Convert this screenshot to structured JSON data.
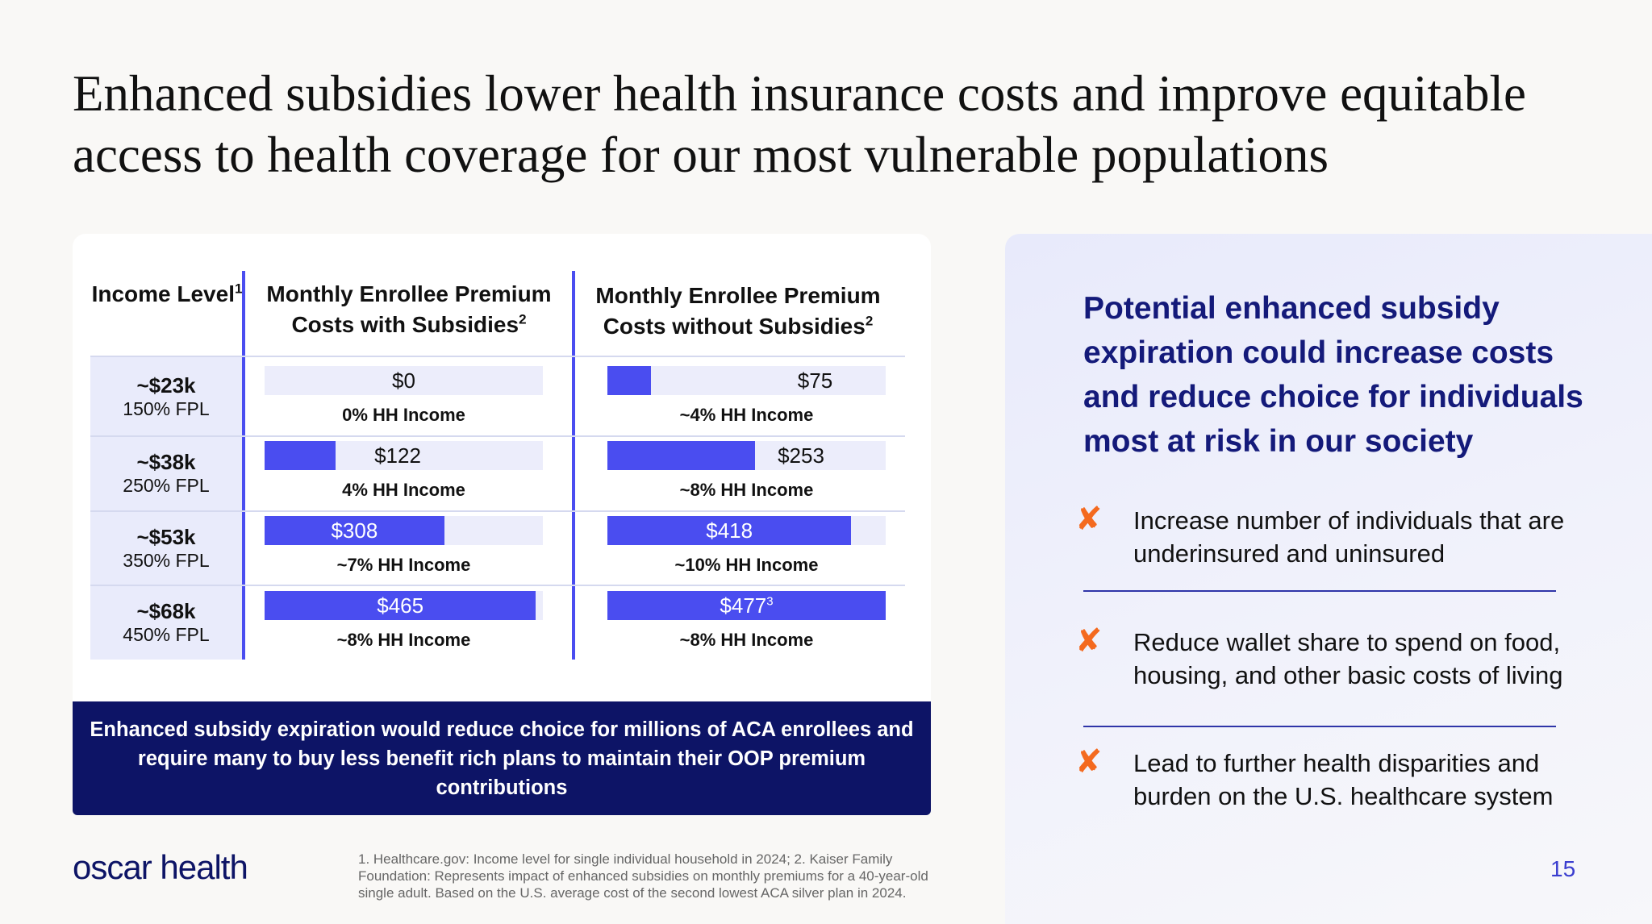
{
  "slide": {
    "title": "Enhanced subsidies lower health insurance costs and improve equitable access to health coverage for our most vulnerable populations",
    "page_number": "15",
    "logo": "oscar health",
    "footnote": "1. Healthcare.gov: Income level for single individual household in 2024; 2. Kaiser Family Foundation: Represents impact of enhanced subsidies on monthly premiums for a 40-year-old single adult. Based on the U.S. average cost of the second lowest ACA silver plan in 2024."
  },
  "table": {
    "headers": {
      "income": "Income Level",
      "income_sup": "1",
      "with": "Monthly Enrollee Premium Costs with Subsidies",
      "with_sup": "2",
      "without": "Monthly Enrollee Premium Costs without Subsidies",
      "without_sup": "2"
    },
    "rows": [
      {
        "income": "~$23k",
        "fpl": "150% FPL",
        "with_label": "$0",
        "with_value": 0,
        "with_pct": "0% HH Income",
        "without_label": "$75",
        "without_sup": "",
        "without_value": 75,
        "without_pct": "~4% HH Income"
      },
      {
        "income": "~$38k",
        "fpl": "250% FPL",
        "with_label": "$122",
        "with_value": 122,
        "with_pct": "4% HH Income",
        "without_label": "$253",
        "without_sup": "",
        "without_value": 253,
        "without_pct": "~8% HH Income"
      },
      {
        "income": "~$53k",
        "fpl": "350% FPL",
        "with_label": "$308",
        "with_value": 308,
        "with_pct": "~7% HH Income",
        "without_label": "$418",
        "without_sup": "",
        "without_value": 418,
        "without_pct": "~10% HH Income"
      },
      {
        "income": "~$68k",
        "fpl": "450% FPL",
        "with_label": "$465",
        "with_value": 465,
        "with_pct": "~8% HH Income",
        "without_label": "$477",
        "without_sup": "3",
        "without_value": 477,
        "without_pct": "~8% HH Income"
      }
    ],
    "scale_max": 477,
    "banner": "Enhanced subsidy expiration would reduce choice for millions of ACA enrollees and require many to buy less benefit rich plans to maintain their OOP premium contributions"
  },
  "panel": {
    "heading": "Potential enhanced subsidy expiration could increase costs and reduce choice for individuals most at risk in our society",
    "marker": "✘",
    "points": [
      "Increase number of individuals that are underinsured and uninsured",
      "Reduce wallet share to spend on food, housing, and other basic costs of living",
      "Lead to further health disparities and burden on the U.S. healthcare system"
    ]
  },
  "colors": {
    "accent": "#4a4df0",
    "navy": "#0d1466",
    "heading": "#141a7a",
    "marker": "#f46a1f",
    "track": "#ecedfb"
  }
}
